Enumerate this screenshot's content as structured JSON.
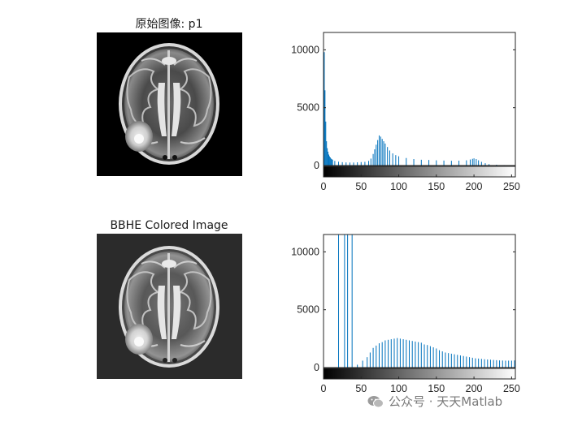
{
  "panels": [
    {
      "title": "原始图像: p1"
    },
    {
      "title": "BBHE Colored Image"
    }
  ],
  "watermark": {
    "text": "公众号 · 天天Matlab"
  },
  "colors": {
    "bar": "#0072bd",
    "axis": "#262626",
    "background": "#ffffff"
  },
  "chart_data": [
    {
      "type": "bar",
      "title": "",
      "description": "imhist of original image p1",
      "xlim": [
        0,
        255
      ],
      "ylim": [
        0,
        11500
      ],
      "xticks": [
        0,
        50,
        100,
        150,
        200,
        250
      ],
      "yticks": [
        0,
        5000,
        10000
      ],
      "colorbar": "grayscale",
      "series": [
        {
          "x": [
            0,
            1,
            2,
            3,
            4,
            5,
            6,
            7,
            8,
            9,
            10,
            11,
            12,
            15,
            20,
            25,
            30,
            35,
            40,
            45,
            50,
            55,
            60,
            63,
            66,
            68,
            70,
            72,
            74,
            76,
            78,
            80,
            82,
            85,
            88,
            92,
            96,
            100,
            110,
            120,
            130,
            140,
            150,
            160,
            170,
            180,
            190,
            195,
            198,
            200,
            203,
            206,
            210,
            215,
            220,
            230,
            240,
            250,
            255
          ],
          "y": [
            11500,
            9800,
            6500,
            3800,
            2100,
            1500,
            1200,
            950,
            800,
            700,
            600,
            550,
            500,
            400,
            330,
            290,
            270,
            260,
            260,
            280,
            300,
            320,
            400,
            600,
            1000,
            1400,
            1800,
            2200,
            2600,
            2500,
            2300,
            2100,
            1900,
            1600,
            1300,
            1050,
            900,
            800,
            650,
            560,
            500,
            480,
            450,
            430,
            410,
            420,
            450,
            520,
            580,
            620,
            560,
            450,
            320,
            200,
            120,
            70,
            40,
            20,
            400
          ]
        }
      ]
    },
    {
      "type": "bar",
      "title": "",
      "description": "imhist of BBHE image",
      "xlim": [
        0,
        255
      ],
      "ylim": [
        0,
        11500
      ],
      "xticks": [
        0,
        50,
        100,
        150,
        200,
        250
      ],
      "yticks": [
        0,
        5000,
        10000
      ],
      "colorbar": "grayscale",
      "series": [
        {
          "x": [
            20,
            28,
            32,
            38,
            45,
            52,
            58,
            62,
            66,
            70,
            74,
            78,
            82,
            86,
            90,
            94,
            98,
            102,
            106,
            110,
            114,
            118,
            122,
            126,
            130,
            134,
            138,
            142,
            146,
            150,
            154,
            158,
            162,
            166,
            170,
            174,
            178,
            182,
            186,
            190,
            194,
            198,
            202,
            206,
            210,
            214,
            218,
            222,
            226,
            230,
            234,
            238,
            242,
            246,
            250,
            254
          ],
          "y": [
            11500,
            11500,
            11500,
            11500,
            250,
            600,
            900,
            1300,
            1700,
            1900,
            2100,
            2200,
            2350,
            2400,
            2450,
            2500,
            2550,
            2500,
            2450,
            2400,
            2350,
            2300,
            2250,
            2200,
            2150,
            2000,
            1950,
            1850,
            1750,
            1650,
            1500,
            1400,
            1300,
            1250,
            1200,
            1150,
            1100,
            1050,
            1000,
            950,
            900,
            850,
            800,
            780,
            750,
            720,
            700,
            680,
            660,
            640,
            620,
            610,
            600,
            600,
            600,
            620
          ]
        }
      ]
    }
  ]
}
